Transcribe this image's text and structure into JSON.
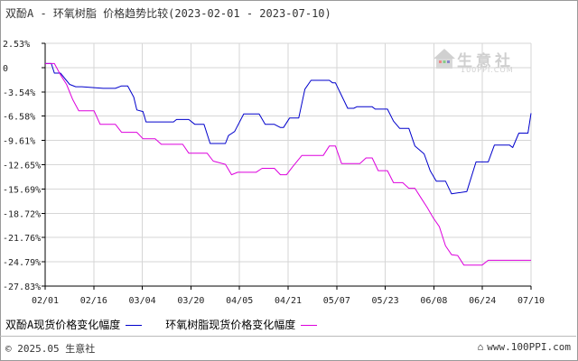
{
  "title": "双酚A - 环氧树脂 价格趋势比较(2023-02-01 - 2023-07-10)",
  "watermark": {
    "name": "生意社",
    "url": "100PPI.COM"
  },
  "footer": {
    "copyright": "© 2025.05 生意社",
    "website": "www.100PPI.com"
  },
  "colors": {
    "series1": "#0000cc",
    "series2": "#dd00dd",
    "grid": "#d6d6d6",
    "axis": "#000000"
  },
  "chart_data": {
    "type": "line",
    "x_ticks": [
      "02/01",
      "02/16",
      "03/04",
      "03/20",
      "04/05",
      "04/21",
      "05/07",
      "05/23",
      "06/08",
      "06/24",
      "07/10"
    ],
    "y_ticks": [
      "2.53%",
      "0",
      "-3.54%",
      "-6.58%",
      "-9.61%",
      "-12.65%",
      "-15.69%",
      "-18.72%",
      "-21.76%",
      "-24.79%",
      "-27.83%"
    ],
    "ylim": [
      -27.83,
      2.53
    ],
    "xlim": [
      "2023-02-01",
      "2023-07-10"
    ],
    "grid": true,
    "series": [
      {
        "name": "双酚A现货价格变化幅度",
        "color": "#0000cc",
        "points": [
          [
            "2023-02-01",
            0
          ],
          [
            "2023-02-03",
            0
          ],
          [
            "2023-02-04",
            -1.2
          ],
          [
            "2023-02-06",
            -1.2
          ],
          [
            "2023-02-09",
            -2.6
          ],
          [
            "2023-02-11",
            -2.9
          ],
          [
            "2023-02-13",
            -2.9
          ],
          [
            "2023-02-20",
            -3.1
          ],
          [
            "2023-02-24",
            -3.1
          ],
          [
            "2023-02-26",
            -2.8
          ],
          [
            "2023-02-28",
            -2.8
          ],
          [
            "2023-03-02",
            -4.2
          ],
          [
            "2023-03-03",
            -5.8
          ],
          [
            "2023-03-05",
            -6.0
          ],
          [
            "2023-03-06",
            -7.3
          ],
          [
            "2023-03-15",
            -7.3
          ],
          [
            "2023-03-16",
            -7.0
          ],
          [
            "2023-03-20",
            -7.0
          ],
          [
            "2023-03-22",
            -7.6
          ],
          [
            "2023-03-25",
            -7.6
          ],
          [
            "2023-03-27",
            -10.0
          ],
          [
            "2023-04-01",
            -10.0
          ],
          [
            "2023-04-02",
            -9.0
          ],
          [
            "2023-04-04",
            -8.5
          ],
          [
            "2023-04-07",
            -6.3
          ],
          [
            "2023-04-12",
            -6.3
          ],
          [
            "2023-04-14",
            -7.6
          ],
          [
            "2023-04-17",
            -7.6
          ],
          [
            "2023-04-19",
            -8.0
          ],
          [
            "2023-04-20",
            -8.0
          ],
          [
            "2023-04-22",
            -6.8
          ],
          [
            "2023-04-25",
            -6.8
          ],
          [
            "2023-04-27",
            -3.2
          ],
          [
            "2023-04-29",
            -2.1
          ],
          [
            "2023-05-05",
            -2.1
          ],
          [
            "2023-05-06",
            -2.4
          ],
          [
            "2023-05-07",
            -2.4
          ],
          [
            "2023-05-09",
            -4.0
          ],
          [
            "2023-05-11",
            -5.6
          ],
          [
            "2023-05-13",
            -5.6
          ],
          [
            "2023-05-14",
            -5.4
          ],
          [
            "2023-05-19",
            -5.4
          ],
          [
            "2023-05-20",
            -5.7
          ],
          [
            "2023-05-24",
            -5.7
          ],
          [
            "2023-05-26",
            -7.2
          ],
          [
            "2023-05-28",
            -8.1
          ],
          [
            "2023-05-31",
            -8.1
          ],
          [
            "2023-06-02",
            -10.3
          ],
          [
            "2023-06-05",
            -11.3
          ],
          [
            "2023-06-07",
            -13.4
          ],
          [
            "2023-06-09",
            -14.7
          ],
          [
            "2023-06-12",
            -14.7
          ],
          [
            "2023-06-14",
            -16.3
          ],
          [
            "2023-06-19",
            -16.0
          ],
          [
            "2023-06-22",
            -12.3
          ],
          [
            "2023-06-26",
            -12.3
          ],
          [
            "2023-06-28",
            -10.2
          ],
          [
            "2023-07-03",
            -10.2
          ],
          [
            "2023-07-04",
            -10.5
          ],
          [
            "2023-07-06",
            -8.7
          ],
          [
            "2023-07-09",
            -8.7
          ],
          [
            "2023-07-10",
            -6.2
          ]
        ]
      },
      {
        "name": "环氧树脂现货价格变化幅度",
        "color": "#dd00dd",
        "points": [
          [
            "2023-02-01",
            0
          ],
          [
            "2023-02-04",
            0
          ],
          [
            "2023-02-06",
            -1.4
          ],
          [
            "2023-02-08",
            -2.6
          ],
          [
            "2023-02-10",
            -4.5
          ],
          [
            "2023-02-12",
            -5.9
          ],
          [
            "2023-02-17",
            -5.9
          ],
          [
            "2023-02-19",
            -7.6
          ],
          [
            "2023-02-24",
            -7.6
          ],
          [
            "2023-02-26",
            -8.6
          ],
          [
            "2023-03-03",
            -8.6
          ],
          [
            "2023-03-05",
            -9.4
          ],
          [
            "2023-03-09",
            -9.4
          ],
          [
            "2023-03-11",
            -10.1
          ],
          [
            "2023-03-18",
            -10.1
          ],
          [
            "2023-03-20",
            -11.2
          ],
          [
            "2023-03-26",
            -11.2
          ],
          [
            "2023-03-28",
            -12.2
          ],
          [
            "2023-04-01",
            -12.6
          ],
          [
            "2023-04-03",
            -13.9
          ],
          [
            "2023-04-05",
            -13.6
          ],
          [
            "2023-04-11",
            -13.6
          ],
          [
            "2023-04-13",
            -13.1
          ],
          [
            "2023-04-17",
            -13.1
          ],
          [
            "2023-04-19",
            -13.9
          ],
          [
            "2023-04-21",
            -13.9
          ],
          [
            "2023-04-23",
            -12.9
          ],
          [
            "2023-04-26",
            -11.5
          ],
          [
            "2023-05-03",
            -11.5
          ],
          [
            "2023-05-05",
            -10.3
          ],
          [
            "2023-05-07",
            -10.3
          ],
          [
            "2023-05-09",
            -12.5
          ],
          [
            "2023-05-15",
            -12.5
          ],
          [
            "2023-05-17",
            -11.8
          ],
          [
            "2023-05-19",
            -11.8
          ],
          [
            "2023-05-21",
            -13.4
          ],
          [
            "2023-05-24",
            -13.4
          ],
          [
            "2023-05-26",
            -14.9
          ],
          [
            "2023-05-29",
            -14.9
          ],
          [
            "2023-05-31",
            -15.6
          ],
          [
            "2023-06-02",
            -15.6
          ],
          [
            "2023-06-04",
            -16.8
          ],
          [
            "2023-06-06",
            -18.0
          ],
          [
            "2023-06-08",
            -19.3
          ],
          [
            "2023-06-10",
            -20.4
          ],
          [
            "2023-06-12",
            -22.8
          ],
          [
            "2023-06-14",
            -23.9
          ],
          [
            "2023-06-16",
            -24.0
          ],
          [
            "2023-06-18",
            -25.2
          ],
          [
            "2023-06-24",
            -25.2
          ],
          [
            "2023-06-26",
            -24.6
          ],
          [
            "2023-07-10",
            -24.6
          ]
        ]
      }
    ]
  }
}
